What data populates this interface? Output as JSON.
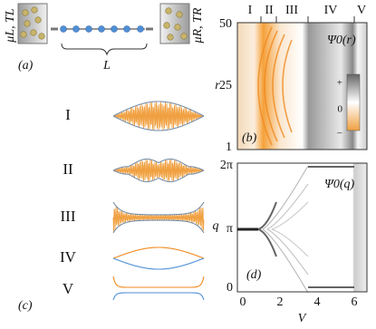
{
  "panel_a": {
    "label": "(a)",
    "left_reservoir": "μL, TL",
    "right_reservoir": "μR, TR",
    "length": "L"
  },
  "panel_c": {
    "label": "(c)",
    "regimes": [
      "I",
      "II",
      "III",
      "IV",
      "V"
    ]
  },
  "panel_b": {
    "label": "(b)",
    "regimes": [
      "I",
      "II",
      "III",
      "IV",
      "V"
    ],
    "inset": "Ψ0(r)",
    "y_label": "r",
    "y_ticks": [
      "1",
      "25",
      "50"
    ],
    "colorbar_ticks": [
      "+",
      "0",
      "−"
    ]
  },
  "panel_d": {
    "label": "(d)",
    "inset": "Ψ0(q)",
    "y_label": "q",
    "y_ticks": [
      "0",
      "π",
      "2π"
    ],
    "x_label": "V",
    "x_ticks": [
      "0",
      "2",
      "4",
      "6"
    ]
  }
}
